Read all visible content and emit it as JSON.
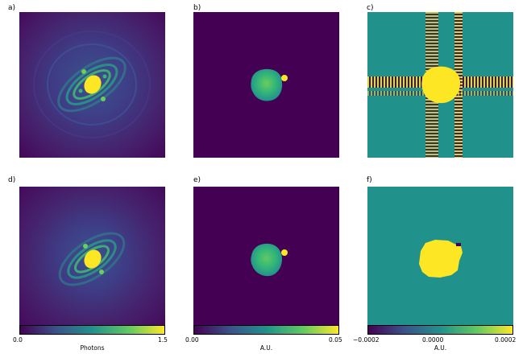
{
  "panels": {
    "a": {
      "label": "a)"
    },
    "b": {
      "label": "b)"
    },
    "c": {
      "label": "c)"
    },
    "d": {
      "label": "d)"
    },
    "e": {
      "label": "e)"
    },
    "f": {
      "label": "f)"
    }
  },
  "colorbars": {
    "left": {
      "ticks": [
        "0.0",
        "1.5"
      ],
      "title": "Photons"
    },
    "middle": {
      "ticks": [
        "0.00",
        "0.05"
      ],
      "title": "A.U."
    },
    "right": {
      "ticks": [
        "−0.0002",
        "0.0000",
        "0.0002"
      ],
      "title": "A.U."
    }
  },
  "colors": {
    "viridis_low": "#440154",
    "viridis_mid": "#21918c",
    "viridis_high": "#fde725"
  }
}
